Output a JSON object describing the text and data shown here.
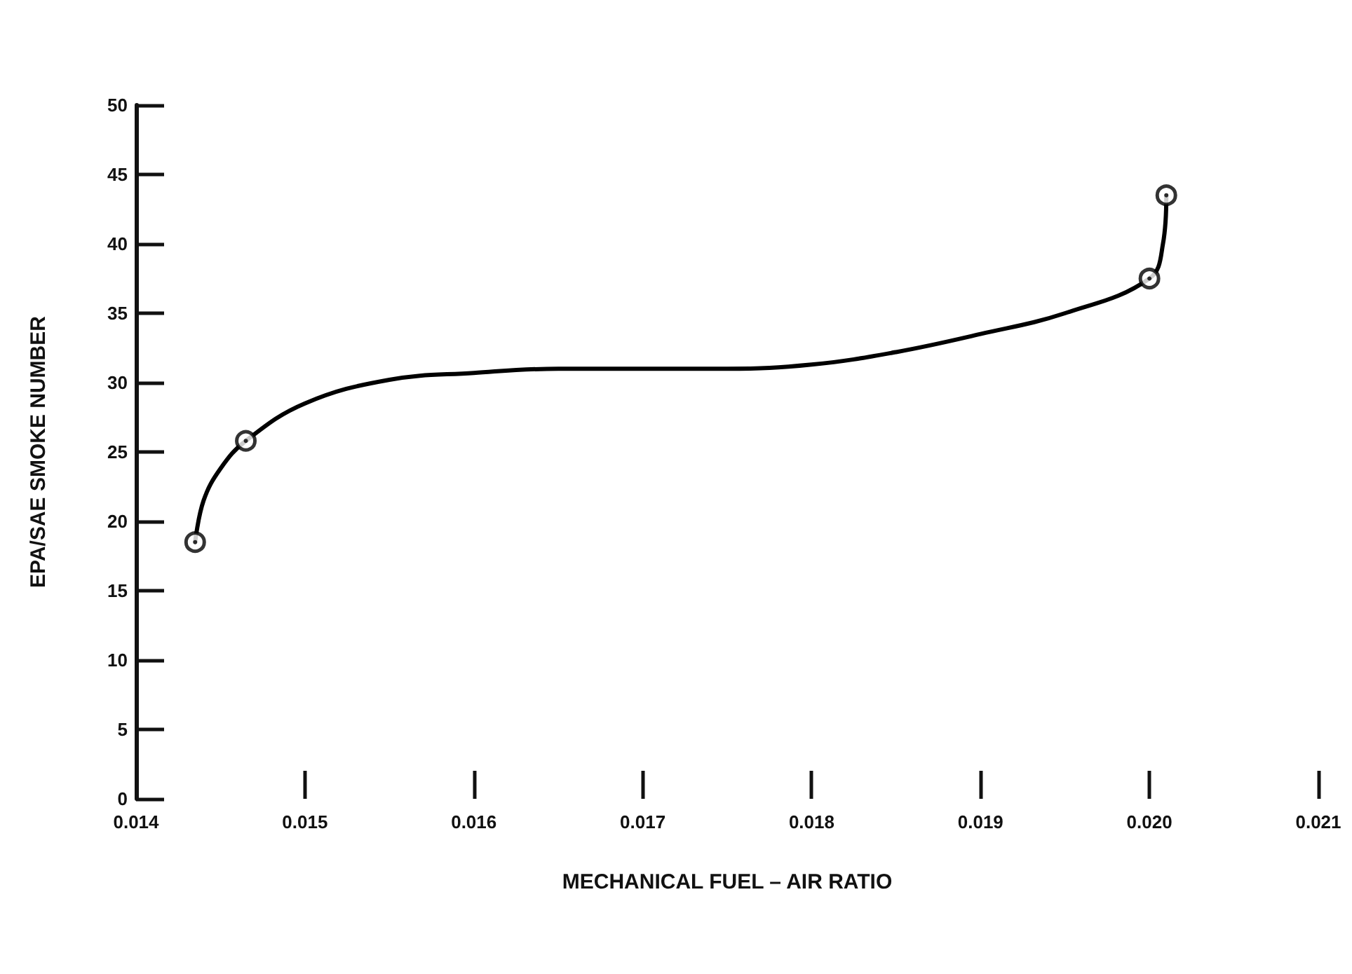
{
  "chart_data": {
    "type": "scatter",
    "xlabel": "MECHANICAL FUEL – AIR RATIO",
    "ylabel": "EPA/SAE SMOKE NUMBER",
    "xlim": [
      0.014,
      0.021
    ],
    "xticks": [
      0.014,
      0.015,
      0.016,
      0.017,
      0.018,
      0.019,
      {
        "value": 0.02,
        "label": "0.020"
      },
      0.021
    ],
    "ylim": [
      0,
      50
    ],
    "yticks": [
      0,
      5,
      10,
      15,
      20,
      25,
      30,
      35,
      40,
      45,
      50
    ],
    "grid": false,
    "series": [
      {
        "color": "#000000",
        "marker": "circle",
        "x": [
          0.01435,
          0.01465,
          0.02,
          0.0201
        ],
        "values": [
          18.5,
          25.8,
          37.5,
          43.5
        ]
      },
      {
        "type": "line",
        "color": "#000000",
        "marker": "none",
        "x": [
          0.01435,
          0.0144,
          0.0145,
          0.01465,
          0.015,
          0.0155,
          0.016,
          0.0165,
          0.017,
          0.0175,
          0.018,
          0.0185,
          0.019,
          0.0195,
          0.02,
          0.02008,
          0.0201
        ],
        "values": [
          18.5,
          21.5,
          23.8,
          25.8,
          28.5,
          30.2,
          30.7,
          31.0,
          31.0,
          31.0,
          31.3,
          32.2,
          33.5,
          35.0,
          37.5,
          40,
          43.5
        ]
      }
    ]
  }
}
